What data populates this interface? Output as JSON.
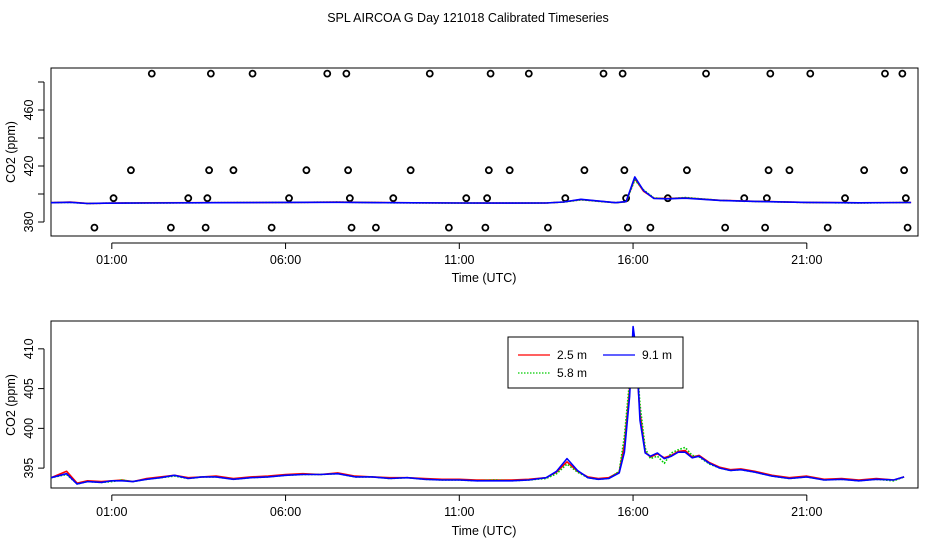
{
  "title": "SPL AIRCOA G  Day 121018  Calibrated Timeseries",
  "chart_data": [
    {
      "type": "scatter+line",
      "panel": "top",
      "xlabel": "Time (UTC)",
      "ylabel": "CO2 (ppm)",
      "xlim": [
        -0.75,
        24.2
      ],
      "ylim": [
        370,
        490
      ],
      "x_ticks": [
        1,
        6,
        11,
        16,
        21
      ],
      "x_tick_labels": [
        "01:00",
        "06:00",
        "11:00",
        "16:00",
        "21:00"
      ],
      "y_ticks": [
        380,
        420,
        460
      ],
      "y_minor_ticks": [
        380,
        400,
        420,
        440,
        460,
        480
      ],
      "y_tick_labels": [
        "380",
        "420",
        "460"
      ],
      "points": [
        [
          0.5,
          376
        ],
        [
          1.05,
          397
        ],
        [
          1.55,
          417
        ],
        [
          2.15,
          486
        ],
        [
          2.7,
          376
        ],
        [
          3.2,
          397
        ],
        [
          3.7,
          376
        ],
        [
          3.75,
          397
        ],
        [
          3.8,
          417
        ],
        [
          3.85,
          486
        ],
        [
          4.5,
          417
        ],
        [
          5.05,
          486
        ],
        [
          5.6,
          376
        ],
        [
          6.1,
          397
        ],
        [
          6.6,
          417
        ],
        [
          7.2,
          486
        ],
        [
          7.75,
          486
        ],
        [
          7.8,
          417
        ],
        [
          7.85,
          397
        ],
        [
          7.9,
          376
        ],
        [
          8.6,
          376
        ],
        [
          9.1,
          397
        ],
        [
          9.6,
          417
        ],
        [
          10.15,
          486
        ],
        [
          10.7,
          376
        ],
        [
          11.2,
          397
        ],
        [
          11.75,
          376
        ],
        [
          11.8,
          397
        ],
        [
          11.85,
          417
        ],
        [
          11.9,
          486
        ],
        [
          12.45,
          417
        ],
        [
          13.0,
          486
        ],
        [
          13.55,
          376
        ],
        [
          14.05,
          397
        ],
        [
          14.6,
          417
        ],
        [
          15.15,
          486
        ],
        [
          15.7,
          486
        ],
        [
          15.75,
          417
        ],
        [
          15.8,
          397
        ],
        [
          15.85,
          376
        ],
        [
          16.5,
          376
        ],
        [
          17.0,
          397
        ],
        [
          17.55,
          417
        ],
        [
          18.1,
          486
        ],
        [
          18.65,
          376
        ],
        [
          19.2,
          397
        ],
        [
          19.8,
          376
        ],
        [
          19.85,
          397
        ],
        [
          19.9,
          417
        ],
        [
          19.95,
          486
        ],
        [
          20.5,
          417
        ],
        [
          21.1,
          486
        ],
        [
          21.6,
          376
        ],
        [
          22.1,
          397
        ],
        [
          22.65,
          417
        ],
        [
          23.25,
          486
        ],
        [
          23.75,
          486
        ],
        [
          23.8,
          417
        ],
        [
          23.85,
          397
        ],
        [
          23.9,
          376
        ]
      ],
      "series": [
        {
          "name": "2.5 m",
          "color": "#ff0000",
          "dash": "solid",
          "x": [
            -0.75,
            -0.2,
            0.3,
            0.8,
            2,
            4,
            6,
            7.5,
            9,
            11,
            12.5,
            13.5,
            14,
            14.5,
            15.5,
            15.8,
            16.05,
            16.3,
            16.6,
            17,
            17.5,
            18.5,
            19.5,
            21,
            22.5,
            24
          ],
          "values": [
            393.8,
            394.2,
            393.3,
            393.4,
            393.7,
            393.8,
            394,
            394.2,
            393.8,
            393.6,
            393.5,
            393.6,
            394.3,
            396.0,
            393.8,
            394.5,
            411.0,
            402,
            397,
            396.8,
            397.3,
            395.5,
            394.8,
            394.0,
            393.7,
            393.9
          ]
        },
        {
          "name": "5.8 m",
          "color": "#00cc00",
          "dash": "dotted",
          "x": [
            -0.75,
            -0.2,
            0.3,
            0.8,
            2,
            4,
            6,
            7.5,
            9,
            11,
            12.5,
            13.5,
            14,
            14.5,
            15.5,
            15.8,
            16.05,
            16.3,
            16.6,
            17,
            17.5,
            18.5,
            19.5,
            21,
            22.5,
            24
          ],
          "values": [
            393.8,
            394.0,
            393.2,
            393.4,
            393.6,
            393.8,
            394.0,
            394.2,
            393.7,
            393.5,
            393.5,
            393.6,
            394.2,
            395.8,
            393.8,
            394.4,
            410.0,
            403,
            397.2,
            396.5,
            397.5,
            395.4,
            394.7,
            393.9,
            393.6,
            393.9
          ]
        },
        {
          "name": "9.1 m",
          "color": "#0000ff",
          "dash": "solid",
          "x": [
            -0.75,
            -0.2,
            0.3,
            0.8,
            2,
            4,
            6,
            7.5,
            9,
            11,
            12.5,
            13.5,
            14,
            14.5,
            15.5,
            15.8,
            16.05,
            16.3,
            16.6,
            17,
            17.5,
            18.5,
            19.5,
            21,
            22.5,
            24
          ],
          "values": [
            393.8,
            394.1,
            393.2,
            393.4,
            393.6,
            393.8,
            394.0,
            394.1,
            393.8,
            393.6,
            393.5,
            393.6,
            394.3,
            396.2,
            393.8,
            394.6,
            412.2,
            402.5,
            396.8,
            396.6,
            397.0,
            395.4,
            394.7,
            394.0,
            393.7,
            393.9
          ]
        }
      ]
    },
    {
      "type": "line",
      "panel": "bottom",
      "xlabel": "Time (UTC)",
      "ylabel": "CO2 (ppm)",
      "xlim": [
        -0.75,
        24.2
      ],
      "ylim": [
        392.5,
        413.5
      ],
      "x_ticks": [
        1,
        6,
        11,
        16,
        21
      ],
      "x_tick_labels": [
        "01:00",
        "06:00",
        "11:00",
        "16:00",
        "21:00"
      ],
      "y_ticks": [
        395,
        400,
        405,
        410
      ],
      "y_tick_labels": [
        "395",
        "400",
        "405",
        "410"
      ],
      "legend": {
        "position": "top-center",
        "entries": [
          {
            "label": "2.5 m",
            "color": "#ff0000",
            "dash": "solid"
          },
          {
            "label": "5.8 m",
            "color": "#00cc00",
            "dash": "dotted"
          },
          {
            "label": "9.1 m",
            "color": "#0000ff",
            "dash": "solid"
          }
        ]
      },
      "series": [
        {
          "name": "2.5 m",
          "color": "#ff0000",
          "dash": "solid",
          "x": [
            -0.75,
            -0.3,
            0,
            0.3,
            0.7,
            1,
            1.3,
            1.6,
            2,
            2.4,
            2.8,
            3.2,
            3.6,
            4,
            4.5,
            5,
            5.5,
            6,
            6.5,
            7,
            7.5,
            8,
            8.5,
            9,
            9.5,
            10,
            10.5,
            11,
            11.5,
            12,
            12.5,
            13,
            13.5,
            13.8,
            14.1,
            14.4,
            14.7,
            15,
            15.3,
            15.6,
            15.75,
            15.9,
            16.0,
            16.1,
            16.2,
            16.35,
            16.5,
            16.7,
            16.9,
            17.1,
            17.3,
            17.5,
            17.7,
            17.9,
            18.2,
            18.5,
            18.8,
            19.1,
            19.5,
            20,
            20.5,
            21,
            21.5,
            22,
            22.5,
            23,
            23.5,
            23.8
          ],
          "values": [
            393.8,
            394.6,
            393.1,
            393.4,
            393.3,
            393.4,
            393.5,
            393.3,
            393.7,
            393.9,
            394.1,
            393.8,
            393.9,
            394.0,
            393.7,
            393.9,
            394.0,
            394.2,
            394.3,
            394.2,
            394.4,
            394.0,
            393.9,
            393.8,
            393.8,
            393.7,
            393.6,
            393.6,
            393.5,
            393.5,
            393.5,
            393.6,
            393.8,
            394.5,
            395.8,
            394.6,
            393.9,
            393.7,
            393.8,
            394.5,
            398,
            405,
            411.0,
            408,
            402,
            397,
            396.4,
            396.8,
            396.3,
            396.6,
            397.1,
            397.2,
            396.4,
            396.6,
            395.7,
            395.1,
            394.8,
            394.9,
            394.6,
            394.1,
            393.8,
            394.0,
            393.6,
            393.7,
            393.5,
            393.7,
            393.5,
            393.9
          ]
        },
        {
          "name": "5.8 m",
          "color": "#00cc00",
          "dash": "dotted",
          "x": [
            -0.75,
            -0.3,
            0,
            0.3,
            0.7,
            1,
            1.3,
            1.6,
            2,
            2.4,
            2.8,
            3.2,
            3.6,
            4,
            4.5,
            5,
            5.5,
            6,
            6.5,
            7,
            7.5,
            8,
            8.5,
            9,
            9.5,
            10,
            10.5,
            11,
            11.5,
            12,
            12.5,
            13,
            13.5,
            13.8,
            14.1,
            14.4,
            14.7,
            15,
            15.3,
            15.6,
            15.75,
            15.9,
            16.0,
            16.1,
            16.2,
            16.35,
            16.5,
            16.7,
            16.9,
            17.1,
            17.3,
            17.5,
            17.7,
            17.9,
            18.2,
            18.5,
            18.8,
            19.1,
            19.5,
            20,
            20.5,
            21,
            21.5,
            22,
            22.5,
            23,
            23.5,
            23.8
          ],
          "values": [
            393.8,
            394.2,
            393.0,
            393.3,
            393.2,
            393.3,
            393.5,
            393.3,
            393.6,
            393.8,
            394.0,
            393.7,
            393.9,
            393.9,
            393.6,
            393.8,
            393.9,
            394.1,
            394.2,
            394.2,
            394.3,
            393.9,
            393.9,
            393.7,
            393.8,
            393.6,
            393.5,
            393.5,
            393.4,
            393.5,
            393.4,
            393.5,
            393.7,
            394.3,
            395.5,
            394.5,
            393.8,
            393.6,
            393.7,
            394.6,
            399,
            406,
            410.0,
            409,
            403,
            397.5,
            396.2,
            396.5,
            395.6,
            396.9,
            397.3,
            397.6,
            396.6,
            396.4,
            395.5,
            395.0,
            394.7,
            394.8,
            394.5,
            394.0,
            393.7,
            393.9,
            393.5,
            393.6,
            393.4,
            393.6,
            393.4,
            393.9
          ]
        },
        {
          "name": "9.1 m",
          "color": "#0000ff",
          "dash": "solid",
          "x": [
            -0.75,
            -0.3,
            0,
            0.3,
            0.7,
            1,
            1.3,
            1.6,
            2,
            2.4,
            2.8,
            3.2,
            3.6,
            4,
            4.5,
            5,
            5.5,
            6,
            6.5,
            7,
            7.5,
            8,
            8.5,
            9,
            9.5,
            10,
            10.5,
            11,
            11.5,
            12,
            12.5,
            13,
            13.5,
            13.8,
            14.1,
            14.4,
            14.7,
            15,
            15.3,
            15.6,
            15.75,
            15.9,
            16.0,
            16.1,
            16.2,
            16.35,
            16.5,
            16.7,
            16.9,
            17.1,
            17.3,
            17.5,
            17.7,
            17.9,
            18.2,
            18.5,
            18.8,
            19.1,
            19.5,
            20,
            20.5,
            21,
            21.5,
            22,
            22.5,
            23,
            23.5,
            23.8
          ],
          "values": [
            393.8,
            394.3,
            393.0,
            393.3,
            393.2,
            393.4,
            393.4,
            393.3,
            393.6,
            393.8,
            394.1,
            393.7,
            393.9,
            393.9,
            393.6,
            393.8,
            393.9,
            394.1,
            394.2,
            394.2,
            394.3,
            393.9,
            393.9,
            393.7,
            393.8,
            393.6,
            393.5,
            393.5,
            393.4,
            393.4,
            393.4,
            393.5,
            393.8,
            394.6,
            396.2,
            394.7,
            393.8,
            393.6,
            393.7,
            394.4,
            397,
            404,
            412.8,
            409.5,
            401,
            396.9,
            396.5,
            396.9,
            396.2,
            396.5,
            397.0,
            397.0,
            396.3,
            396.5,
            395.6,
            395.0,
            394.7,
            394.8,
            394.5,
            394.0,
            393.7,
            393.9,
            393.5,
            393.6,
            393.4,
            393.6,
            393.5,
            393.9
          ]
        }
      ]
    }
  ]
}
